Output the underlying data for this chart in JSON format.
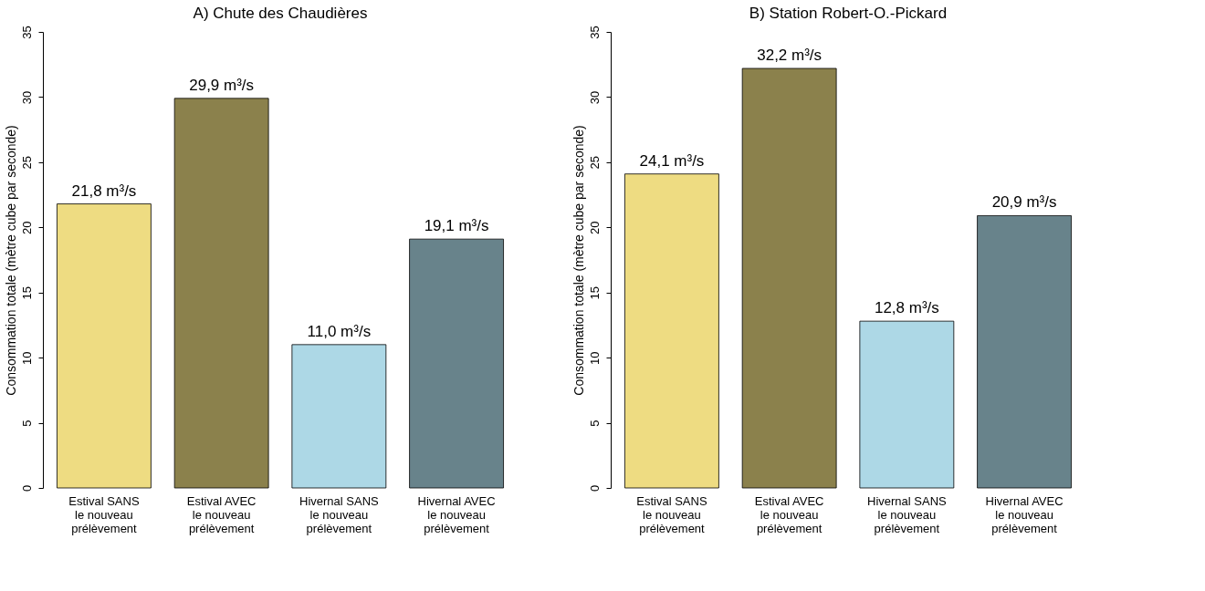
{
  "chart_data": [
    {
      "type": "bar",
      "title": "A) Chute des Chaudières",
      "ylabel": "Consommation totale (mètre cube par seconde)",
      "categories": [
        "Estival SANS\nle nouveau\nprélèvement",
        "Estival AVEC\nle nouveau\nprélèvement",
        "Hivernal SANS\nle nouveau\nprélèvement",
        "Hivernal AVEC\nle nouveau\nprélèvement"
      ],
      "values": [
        21.8,
        29.9,
        11.0,
        19.1
      ],
      "colors": [
        "#eedc82",
        "#8b814c",
        "#add8e6",
        "#68838b"
      ],
      "value_labels": [
        "21,8 m³/s",
        "29,9 m³/s",
        "11,0 m³/s",
        "19,1 m³/s"
      ],
      "ylim": [
        0,
        35
      ],
      "yticks": [
        0,
        5,
        10,
        15,
        20,
        25,
        30,
        35
      ],
      "grid": false,
      "legend": false
    },
    {
      "type": "bar",
      "title": "B) Station Robert-O.-Pickard",
      "ylabel": "Consommation totale (mètre cube par seconde)",
      "categories": [
        "Estival SANS\nle nouveau\nprélèvement",
        "Estival AVEC\nle nouveau\nprélèvement",
        "Hivernal SANS\nle nouveau\nprélèvement",
        "Hivernal AVEC\nle nouveau\nprélèvement"
      ],
      "values": [
        24.1,
        32.2,
        12.8,
        20.9
      ],
      "colors": [
        "#eedc82",
        "#8b814c",
        "#add8e6",
        "#68838b"
      ],
      "value_labels": [
        "24,1 m³/s",
        "32,2 m³/s",
        "12,8 m³/s",
        "20,9 m³/s"
      ],
      "ylim": [
        0,
        35
      ],
      "yticks": [
        0,
        5,
        10,
        15,
        20,
        25,
        30,
        35
      ],
      "grid": false,
      "legend": false
    }
  ]
}
